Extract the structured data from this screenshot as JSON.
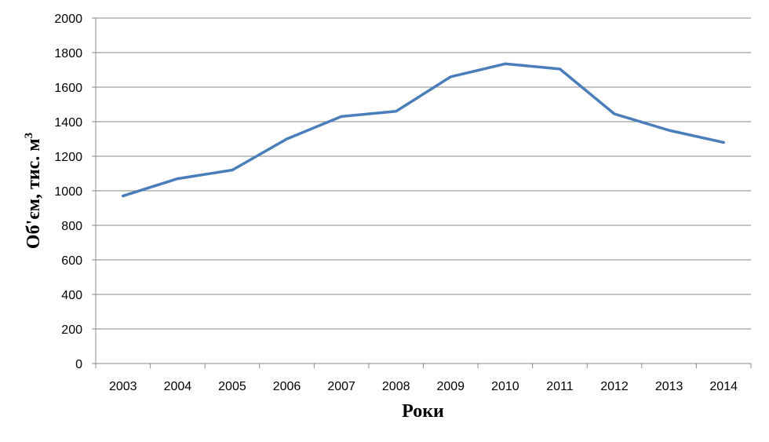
{
  "chart_data": {
    "type": "line",
    "title": "",
    "xlabel": "Роки",
    "ylabel": "Об'єм, тис. м",
    "ylabel_superscript": "3",
    "categories": [
      "2003",
      "2004",
      "2005",
      "2006",
      "2007",
      "2008",
      "2009",
      "2010",
      "2011",
      "2012",
      "2013",
      "2014"
    ],
    "series": [
      {
        "values": [
          970,
          1070,
          1120,
          1300,
          1430,
          1460,
          1660,
          1735,
          1705,
          1445,
          1350,
          1280
        ]
      }
    ],
    "ylim": [
      0,
      2000
    ],
    "yticks": [
      "0",
      "200",
      "400",
      "600",
      "800",
      "1000",
      "1200",
      "1400",
      "1600",
      "1800",
      "2000"
    ],
    "grid": true,
    "legend": "none",
    "colors": {
      "line": "#4a7ebb",
      "grid": "#898989",
      "axis": "#898989"
    }
  }
}
